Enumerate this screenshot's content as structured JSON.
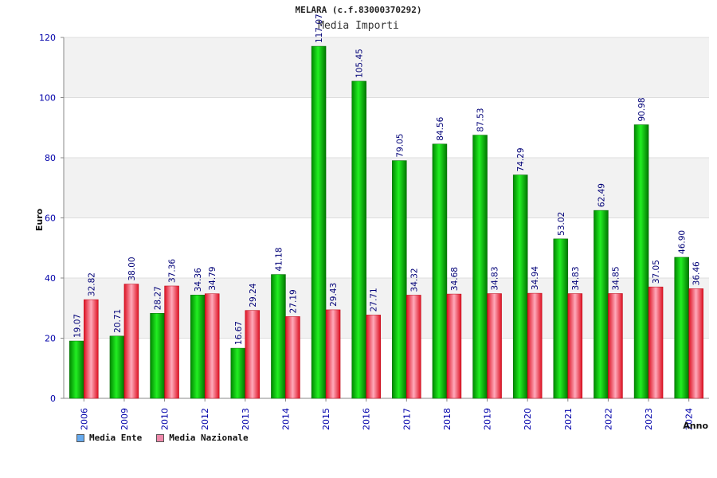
{
  "chart_data": {
    "type": "bar",
    "title": "MELARA (c.f.83000370292)",
    "subtitle": "Media Importi",
    "xlabel": "Anno",
    "ylabel": "Euro",
    "ylim": [
      0,
      120
    ],
    "yticks": [
      0,
      20,
      40,
      60,
      80,
      100,
      120
    ],
    "grid": true,
    "legend_position": "bottom-left",
    "categories": [
      "2006",
      "2009",
      "2010",
      "2012",
      "2013",
      "2014",
      "2015",
      "2016",
      "2017",
      "2018",
      "2019",
      "2020",
      "2021",
      "2022",
      "2023",
      "2024"
    ],
    "series": [
      {
        "name": "Media Ente",
        "color": "#00cc00",
        "legend_color": "#66aaee",
        "values": [
          19.07,
          20.71,
          28.27,
          34.36,
          16.67,
          41.18,
          117.07,
          105.45,
          79.05,
          84.56,
          87.53,
          74.29,
          53.02,
          62.49,
          90.98,
          46.9
        ],
        "labels": [
          "19.07",
          "20.71",
          "28.27",
          "34.36",
          "16.67",
          "41.18",
          "117.07",
          "105.45",
          "79.05",
          "84.56",
          "87.53",
          "74.29",
          "53.02",
          "62.49",
          "90.98",
          "46.90"
        ]
      },
      {
        "name": "Media Nazionale",
        "color": "#ee2233",
        "legend_color": "#ee88aa",
        "values": [
          32.82,
          38.0,
          37.36,
          34.79,
          29.24,
          27.19,
          29.43,
          27.71,
          34.32,
          34.68,
          34.83,
          34.94,
          34.83,
          34.85,
          37.05,
          36.46
        ],
        "labels": [
          "32.82",
          "38.00",
          "37.36",
          "34.79",
          "29.24",
          "27.19",
          "29.43",
          "27.71",
          "34.32",
          "34.68",
          "34.83",
          "34.94",
          "34.83",
          "34.85",
          "37.05",
          "36.46"
        ]
      }
    ]
  }
}
